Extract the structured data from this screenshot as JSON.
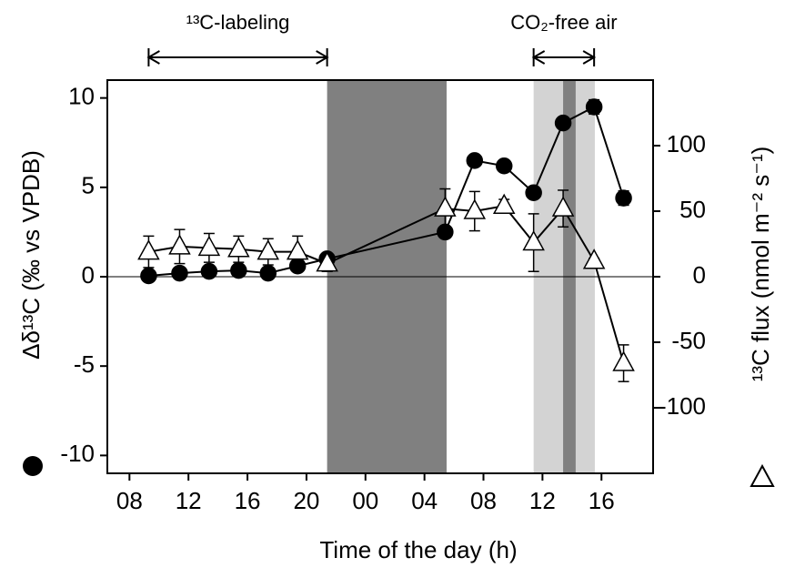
{
  "chart_data": {
    "type": "line",
    "xlabel": "Time of the day (h)",
    "ylabel": "Δδ¹³C (‰ vs VPDB)",
    "y2label": "¹³C flux (nmol m⁻² s⁻¹)",
    "xlim": [
      6.5,
      43.5
    ],
    "ylim": [
      -11,
      11
    ],
    "y2lim": [
      -150,
      150
    ],
    "xticks": [
      {
        "value": 8,
        "label": "08"
      },
      {
        "value": 12,
        "label": "12"
      },
      {
        "value": 16,
        "label": "16"
      },
      {
        "value": 20,
        "label": "20"
      },
      {
        "value": 24,
        "label": "00"
      },
      {
        "value": 28,
        "label": "04"
      },
      {
        "value": 32,
        "label": "08"
      },
      {
        "value": 36,
        "label": "12"
      },
      {
        "value": 40,
        "label": "16"
      }
    ],
    "yticks": [
      10,
      5,
      0,
      -5,
      -10
    ],
    "y2ticks": [
      100,
      50,
      0,
      -50,
      -100
    ],
    "shaded_regions": [
      {
        "xlim": [
          21.4,
          29.5
        ],
        "color": "#808080"
      },
      {
        "xlim": [
          35.4,
          39.55
        ],
        "color": "#d3d3d3"
      },
      {
        "xlim": [
          37.4,
          38.25
        ],
        "color": "#808080"
      }
    ],
    "annotations": [
      {
        "text": "¹³C-labeling",
        "xlim": [
          9.3,
          21.4
        ]
      },
      {
        "text": "CO₂-free air",
        "xlim": [
          35.4,
          39.5
        ]
      }
    ],
    "series": [
      {
        "marker": "circle",
        "color": "#000000",
        "axis": "y",
        "x": [
          9.3,
          11.4,
          13.4,
          15.4,
          17.4,
          19.4,
          21.4,
          29.4,
          31.4,
          33.4,
          35.4,
          37.4,
          39.5,
          41.5
        ],
        "values": [
          0.05,
          0.2,
          0.3,
          0.35,
          0.2,
          0.6,
          1.0,
          2.5,
          6.5,
          6.2,
          4.7,
          8.6,
          9.5,
          4.4
        ],
        "errors": [
          0.1,
          0.1,
          0.1,
          0.1,
          0.1,
          0.1,
          0.1,
          0.2,
          0.2,
          0.2,
          0.2,
          0.2,
          0.4,
          0.4
        ]
      },
      {
        "marker": "triangle",
        "color": "#ffffff",
        "axis": "y2",
        "x": [
          9.3,
          11.4,
          13.4,
          15.4,
          17.4,
          19.4,
          21.4,
          29.4,
          31.4,
          33.4,
          35.4,
          37.4,
          39.5,
          41.5
        ],
        "values": [
          19,
          23,
          22,
          21,
          19,
          19,
          10,
          52,
          50,
          54,
          26,
          52,
          12,
          -66
        ],
        "errors": [
          12,
          13,
          11,
          10,
          10,
          12,
          6,
          15,
          15,
          5,
          22,
          14,
          2,
          14
        ]
      }
    ]
  }
}
